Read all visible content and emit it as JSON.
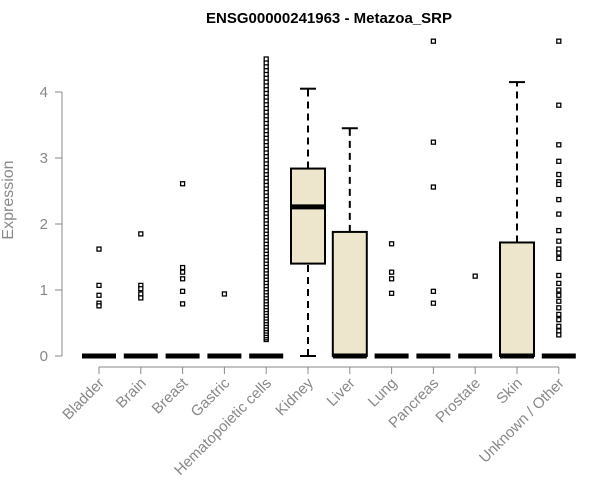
{
  "chart_data": {
    "type": "boxplot",
    "title": "ENSG00000241963 - Metazoa_SRP",
    "xlabel": "",
    "ylabel": "Expression",
    "ylim": [
      0,
      4.8
    ],
    "yticks": [
      0,
      1,
      2,
      3,
      4
    ],
    "box_fill": "#ede6cc",
    "axis_color": "#888888",
    "categories": [
      "Bladder",
      "Brain",
      "Breast",
      "Gastric",
      "Hematopoietic cells",
      "Kidney",
      "Liver",
      "Lung",
      "Pancreas",
      "Prostate",
      "Skin",
      "Unknown / Other"
    ],
    "series": [
      {
        "name": "Bladder",
        "box": {
          "q1": 0,
          "median": 0,
          "q3": 0,
          "whisker_low": 0,
          "whisker_high": 0
        },
        "outliers": [
          1.62,
          1.07,
          0.92,
          0.8,
          0.76
        ]
      },
      {
        "name": "Brain",
        "box": {
          "q1": 0,
          "median": 0,
          "q3": 0,
          "whisker_low": 0,
          "whisker_high": 0
        },
        "outliers": [
          1.85,
          1.07,
          1.02,
          0.94,
          0.88
        ]
      },
      {
        "name": "Breast",
        "box": {
          "q1": 0,
          "median": 0,
          "q3": 0,
          "whisker_low": 0,
          "whisker_high": 0
        },
        "outliers": [
          2.61,
          1.34,
          1.27,
          1.17,
          0.98,
          0.79
        ]
      },
      {
        "name": "Gastric",
        "box": {
          "q1": 0,
          "median": 0,
          "q3": 0,
          "whisker_low": 0,
          "whisker_high": 0
        },
        "outliers": [
          0.94
        ]
      },
      {
        "name": "Hematopoietic cells",
        "box": {
          "q1": 0,
          "median": 0,
          "q3": 0,
          "whisker_low": 0,
          "whisker_high": 0
        },
        "outliers_range": [
          0.25,
          4.5
        ],
        "outliers_count": 85
      },
      {
        "name": "Kidney",
        "box": {
          "q1": 1.4,
          "median": 2.26,
          "q3": 2.84,
          "whisker_low": 0,
          "whisker_high": 4.05
        },
        "outliers": []
      },
      {
        "name": "Liver",
        "box": {
          "q1": 0,
          "median": 0,
          "q3": 1.88,
          "whisker_low": 0,
          "whisker_high": 3.45
        },
        "outliers": []
      },
      {
        "name": "Lung",
        "box": {
          "q1": 0,
          "median": 0,
          "q3": 0,
          "whisker_low": 0,
          "whisker_high": 0
        },
        "outliers": [
          1.7,
          1.27,
          1.17,
          0.95
        ]
      },
      {
        "name": "Pancreas",
        "box": {
          "q1": 0,
          "median": 0,
          "q3": 0,
          "whisker_low": 0,
          "whisker_high": 0
        },
        "outliers": [
          4.77,
          3.24,
          2.56,
          0.98,
          0.8
        ]
      },
      {
        "name": "Prostate",
        "box": {
          "q1": 0,
          "median": 0,
          "q3": 0,
          "whisker_low": 0,
          "whisker_high": 0
        },
        "outliers": [
          1.21
        ]
      },
      {
        "name": "Skin",
        "box": {
          "q1": 0,
          "median": 0,
          "q3": 1.72,
          "whisker_low": 0,
          "whisker_high": 4.15
        },
        "outliers": []
      },
      {
        "name": "Unknown / Other",
        "box": {
          "q1": 0,
          "median": 0,
          "q3": 0,
          "whisker_low": 0,
          "whisker_high": 0
        },
        "outliers": [
          4.77,
          3.8,
          3.2,
          2.95,
          2.75,
          2.64,
          2.6,
          2.37,
          2.15,
          1.9,
          1.74,
          1.62,
          1.56,
          1.48,
          1.22,
          1.1,
          1.0,
          0.92,
          0.83,
          0.73,
          0.63,
          0.55,
          0.45,
          0.38,
          0.32
        ]
      }
    ]
  }
}
